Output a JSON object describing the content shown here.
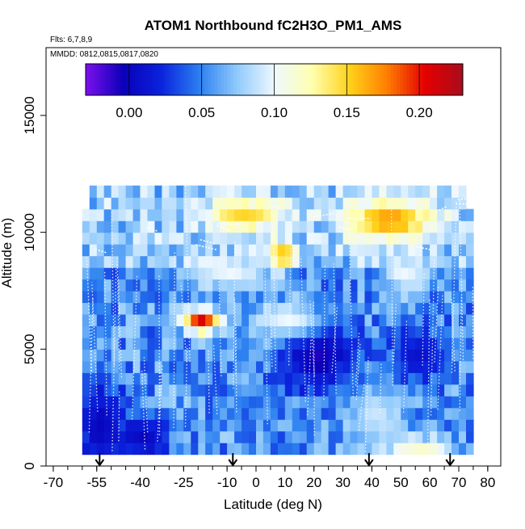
{
  "chart_data": {
    "type": "heatmap",
    "title": "ATOM1 Northbound fC2H3O_PM1_AMS",
    "subtitle_flights": "Flts: 6,7,8,9",
    "subtitle_dates": "MMDD: 0812,0815,0817,0820",
    "xlabel": "Latitude (deg N)",
    "ylabel": "Altitude (m)",
    "xlim": [
      -70,
      80
    ],
    "ylim": [
      0,
      17500
    ],
    "x_ticks": [
      -70,
      -55,
      -40,
      -25,
      -10,
      0,
      10,
      20,
      30,
      40,
      50,
      60,
      70,
      80
    ],
    "x_tick_labels": [
      "-70",
      "-55",
      "-40",
      "-25",
      "-10",
      "0",
      "10",
      "20",
      "30",
      "40",
      "50",
      "60",
      "70",
      "80"
    ],
    "x_minor_step": 5,
    "y_ticks": [
      0,
      5000,
      10000,
      15000
    ],
    "y_tick_labels": [
      "0",
      "5000",
      "10000",
      "15000"
    ],
    "colorbar": {
      "range": [
        -0.03,
        0.23
      ],
      "ticks": [
        0.0,
        0.05,
        0.1,
        0.15,
        0.2
      ],
      "tick_labels": [
        "0.00",
        "0.05",
        "0.10",
        "0.15",
        "0.20"
      ],
      "colors": [
        "#7d10ee",
        "#0a00b8",
        "#0b22dd",
        "#2a7ef0",
        "#8fc9fb",
        "#eef8ff",
        "#ffffb0",
        "#ffd21a",
        "#ff7d00",
        "#e40000",
        "#a80c1c"
      ]
    },
    "flight_markers_lat": [
      -54,
      -8,
      39,
      67
    ],
    "domain_lat": [
      -60,
      75
    ],
    "alt_top": 12000,
    "fields": [
      {
        "center": [
          -20,
          6000
        ],
        "size": [
          6,
          500
        ],
        "value": 0.21
      },
      {
        "center": [
          -5,
          10500
        ],
        "size": [
          14,
          700
        ],
        "value": 0.15
      },
      {
        "center": [
          45,
          10300
        ],
        "size": [
          15,
          900
        ],
        "value": 0.17
      },
      {
        "center": [
          8,
          8800
        ],
        "size": [
          5,
          600
        ],
        "value": 0.16
      },
      {
        "center": [
          55,
          600
        ],
        "size": [
          12,
          400
        ],
        "value": 0.12
      },
      {
        "center": [
          20,
          4500
        ],
        "size": [
          12,
          1500
        ],
        "value": -0.01
      },
      {
        "center": [
          -55,
          1500
        ],
        "size": [
          8,
          2000
        ],
        "value": 0.0
      },
      {
        "center": [
          -40,
          1000
        ],
        "size": [
          8,
          900
        ],
        "value": 0.0
      },
      {
        "center": [
          40,
          2000
        ],
        "size": [
          10,
          1200
        ],
        "value": 0.09
      },
      {
        "center": [
          -10,
          8000
        ],
        "size": [
          12,
          800
        ],
        "value": 0.1
      },
      {
        "center": [
          50,
          8000
        ],
        "size": [
          8,
          800
        ],
        "value": 0.1
      },
      {
        "center": [
          55,
          4500
        ],
        "size": [
          10,
          1200
        ],
        "value": 0.01
      },
      {
        "center": [
          10,
          6000
        ],
        "size": [
          12,
          800
        ],
        "value": 0.1
      }
    ]
  }
}
